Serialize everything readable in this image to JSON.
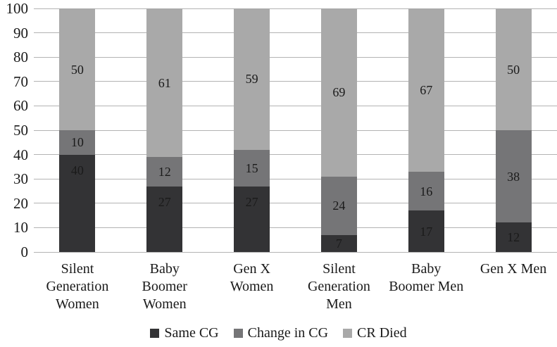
{
  "chart_data": {
    "type": "bar",
    "stacked": true,
    "categories": [
      "Silent Generation Women",
      "Baby Boomer Women",
      "Gen X Women",
      "Silent Generation Men",
      "Baby Boomer Men",
      "Gen X Men"
    ],
    "category_label_lines": [
      [
        "Silent",
        "Generation",
        "Women"
      ],
      [
        "Baby",
        "Boomer",
        "Women"
      ],
      [
        "Gen X",
        "Women"
      ],
      [
        "Silent",
        "Generation",
        "Men"
      ],
      [
        "Baby",
        "Boomer Men"
      ],
      [
        "Gen X Men"
      ]
    ],
    "series": [
      {
        "name": "Same CG",
        "color": "#333335",
        "values": [
          40,
          27,
          27,
          7,
          17,
          12
        ]
      },
      {
        "name": "Change in CG",
        "color": "#757577",
        "values": [
          10,
          12,
          15,
          24,
          16,
          38
        ]
      },
      {
        "name": "CR Died",
        "color": "#a9a9a9",
        "values": [
          50,
          61,
          59,
          69,
          67,
          50
        ]
      }
    ],
    "ylim": [
      0,
      100
    ],
    "yticks": [
      0,
      10,
      20,
      30,
      40,
      50,
      60,
      70,
      80,
      90,
      100
    ],
    "grid": true,
    "gridline_color": "#b3b3b3",
    "data_labels_shown": true,
    "data_label_color": "#1a1a1a",
    "legend_position": "bottom",
    "legend_entries": [
      "Same CG",
      "Change in CG",
      "CR Died"
    ],
    "background_color": "#ffffff"
  }
}
